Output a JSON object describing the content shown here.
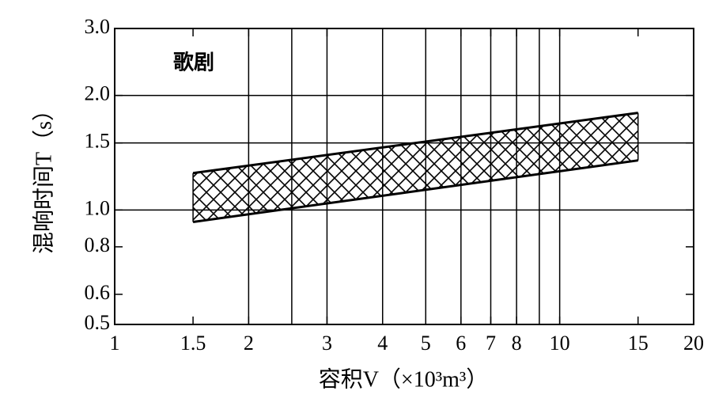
{
  "chart_data": {
    "type": "band",
    "annotation": "歌剧",
    "xlabel": "容积V（×10³m³）",
    "ylabel": "混响时间T（s）",
    "xscale": "log",
    "yscale": "log",
    "xlim": [
      1,
      20
    ],
    "ylim": [
      0.5,
      3.0
    ],
    "xticks": [
      1,
      1.5,
      2,
      3,
      4,
      5,
      6,
      7,
      8,
      10,
      15,
      20
    ],
    "yticks": [
      0.5,
      0.6,
      0.8,
      {
        "value": 1.0,
        "label": "1.0"
      },
      1.5,
      {
        "value": 2.0,
        "label": "2.0"
      },
      {
        "value": 3.0,
        "label": "3.0"
      }
    ],
    "xgrid": [
      2,
      2.5,
      3,
      4,
      5,
      6,
      7,
      8,
      9,
      10
    ],
    "ygrid": [
      1.0,
      1.5,
      2.0
    ],
    "x": [
      1.5,
      15
    ],
    "lower": [
      0.93,
      1.35
    ],
    "upper": [
      1.25,
      1.8
    ],
    "hatch": true,
    "color": "#000000"
  }
}
